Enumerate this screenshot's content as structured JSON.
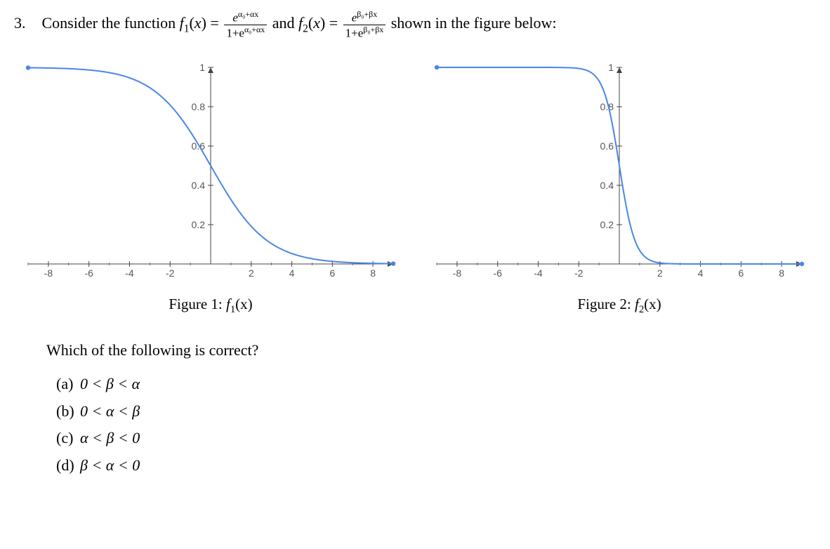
{
  "problem": {
    "number": "3.",
    "lead": "Consider the function ",
    "f1_label": "f",
    "f1_sub": "1",
    "f2_label": "f",
    "f2_sub": "2",
    "xvar": "x",
    "eq": "=",
    "and": " and ",
    "tail": " shown in the figure below:",
    "frac1": {
      "top_e": "e",
      "top_exp": "α₀+αx",
      "bot_pre": "1+e",
      "bot_exp_raw": "α₀+αx"
    },
    "frac2": {
      "top_e": "e",
      "top_exp": "β₀+βx",
      "bot_pre": "1+e",
      "bot_exp_raw": "β₀+βx"
    }
  },
  "fig1": {
    "caption_prefix": "Figure 1: ",
    "caption_fn": "f",
    "caption_sub": "1",
    "caption_arg": "(x)"
  },
  "fig2": {
    "caption_prefix": "Figure 2: ",
    "caption_fn": "f",
    "caption_sub": "2",
    "caption_arg": "(x)"
  },
  "followup": "Which of the following is correct?",
  "options": {
    "a_letter": "(a)",
    "a_text": "0 < β < α",
    "b_letter": "(b)",
    "b_text": "0 < α < β",
    "c_letter": "(c)",
    "c_text": "α < β < 0",
    "d_letter": "(d)",
    "d_text": "β < α < 0"
  },
  "chart_common": {
    "xlim": [
      -9,
      9
    ],
    "ylim": [
      0,
      1
    ],
    "xticks": [
      -8,
      -6,
      -4,
      -2,
      2,
      4,
      6,
      8
    ],
    "yticks": [
      0.2,
      0.4,
      0.6,
      0.8,
      1
    ],
    "ytick_labels": [
      "0.2",
      "0.4",
      "0.6",
      "0.8",
      "1"
    ],
    "curve_color": "#4a86e8",
    "axis_color": "#444444",
    "text_color": "#555555",
    "endpoint_marker_color": "#4a86e8"
  },
  "f1_curve": {
    "alpha": -0.72
  },
  "f2_curve": {
    "beta": -2.6
  }
}
